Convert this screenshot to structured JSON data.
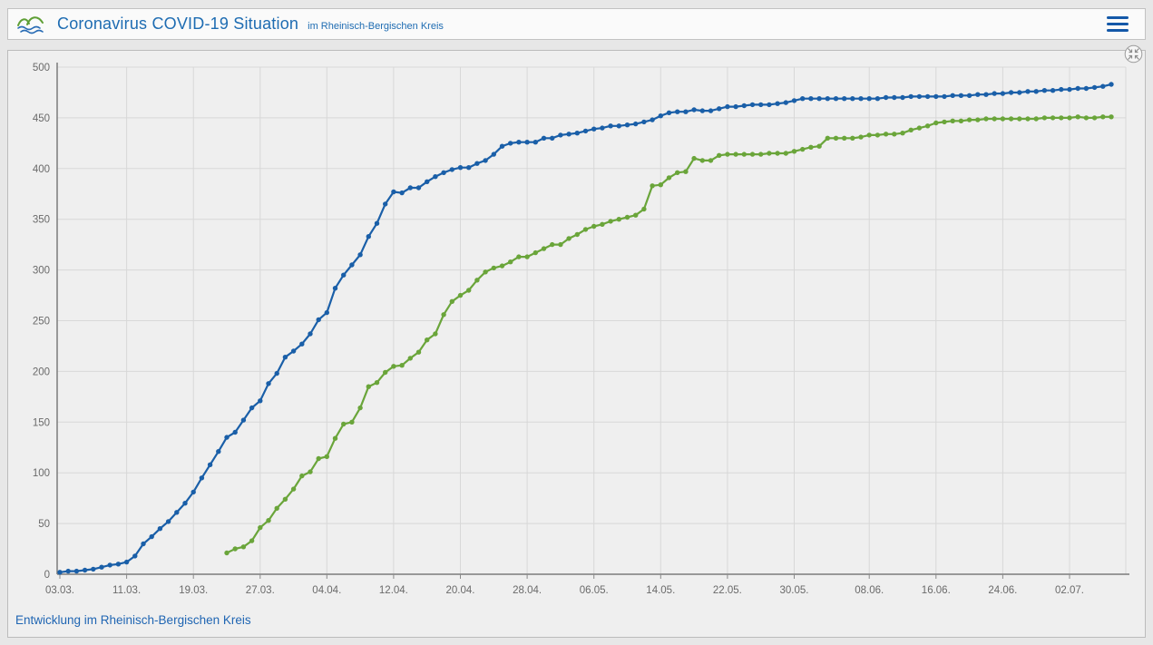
{
  "header": {
    "title": "Coronavirus COVID-19 Situation",
    "subtitle": "im Rheinisch-Bergischen Kreis",
    "logo_icon": "hills-waves-logo",
    "menu_icon": "hamburger-menu"
  },
  "panel": {
    "caption": "Entwicklung im Rheinisch-Bergischen Kreis",
    "collapse_icon": "collapse-arrows"
  },
  "colors": {
    "accent_blue": "#1e6cb2",
    "series_blue": "#1a5fa8",
    "series_green": "#6aa53a",
    "grid": "#d8d8d8",
    "axis": "#7c7c7c",
    "tick_label": "#6a6a6a",
    "page_bg": "#e7e7e7",
    "card_bg": "#efefef",
    "card_border": "#bcbcbc"
  },
  "chart_data": {
    "type": "line",
    "title": "",
    "xlabel": "",
    "ylabel": "",
    "ylim": [
      0,
      500
    ],
    "y_ticks": [
      0,
      50,
      100,
      150,
      200,
      250,
      300,
      350,
      400,
      450,
      500
    ],
    "grid": true,
    "legend": "none",
    "x_tick_labels": [
      "03.03.",
      "11.03.",
      "19.03.",
      "27.03.",
      "04.04.",
      "12.04.",
      "20.04.",
      "28.04.",
      "06.05.",
      "14.05.",
      "22.05.",
      "30.05.",
      "08.06.",
      "16.06.",
      "24.06.",
      "02.07."
    ],
    "x": [
      "03.03.",
      "04.03.",
      "05.03.",
      "06.03.",
      "07.03.",
      "08.03.",
      "09.03.",
      "10.03.",
      "11.03.",
      "12.03.",
      "13.03.",
      "14.03.",
      "15.03.",
      "16.03.",
      "17.03.",
      "18.03.",
      "19.03.",
      "20.03.",
      "21.03.",
      "22.03.",
      "23.03.",
      "24.03.",
      "25.03.",
      "26.03.",
      "27.03.",
      "28.03.",
      "29.03.",
      "30.03.",
      "31.03.",
      "01.04.",
      "02.04.",
      "03.04.",
      "04.04.",
      "05.04.",
      "06.04.",
      "07.04.",
      "08.04.",
      "09.04.",
      "10.04.",
      "11.04.",
      "12.04.",
      "13.04.",
      "14.04.",
      "15.04.",
      "16.04.",
      "17.04.",
      "18.04.",
      "19.04.",
      "20.04.",
      "21.04.",
      "22.04.",
      "23.04.",
      "24.04.",
      "25.04.",
      "26.04.",
      "27.04.",
      "28.04.",
      "29.04.",
      "30.04.",
      "01.05.",
      "02.05.",
      "03.05.",
      "04.05.",
      "05.05.",
      "06.05.",
      "07.05.",
      "08.05.",
      "09.05.",
      "10.05.",
      "11.05.",
      "12.05.",
      "13.05.",
      "14.05.",
      "15.05.",
      "16.05.",
      "17.05.",
      "18.05.",
      "19.05.",
      "20.05.",
      "21.05.",
      "22.05.",
      "23.05.",
      "24.05.",
      "25.05.",
      "26.05.",
      "27.05.",
      "28.05.",
      "29.05.",
      "30.05.",
      "31.05.",
      "01.06.",
      "02.06.",
      "03.06.",
      "04.06.",
      "05.06.",
      "06.06.",
      "07.06.",
      "08.06.",
      "09.06.",
      "10.06.",
      "11.06.",
      "12.06.",
      "13.06.",
      "14.06.",
      "15.06.",
      "16.06.",
      "17.06.",
      "18.06.",
      "19.06.",
      "20.06.",
      "21.06.",
      "22.06.",
      "23.06.",
      "24.06.",
      "25.06.",
      "26.06.",
      "27.06.",
      "28.06.",
      "29.06.",
      "30.06.",
      "01.07.",
      "02.07.",
      "03.07.",
      "04.07.",
      "05.07.",
      "06.07.",
      "07.07."
    ],
    "series": [
      {
        "name": "blue",
        "color": "#1a5fa8",
        "values": [
          2,
          3,
          3,
          4,
          5,
          7,
          9,
          10,
          12,
          18,
          30,
          37,
          45,
          52,
          61,
          70,
          81,
          95,
          108,
          121,
          135,
          140,
          152,
          164,
          171,
          188,
          198,
          214,
          220,
          227,
          237,
          251,
          258,
          282,
          295,
          305,
          315,
          333,
          346,
          365,
          377,
          376,
          381,
          381,
          387,
          392,
          396,
          399,
          401,
          401,
          405,
          408,
          414,
          422,
          425,
          426,
          426,
          426,
          430,
          430,
          433,
          434,
          435,
          437,
          439,
          440,
          442,
          442,
          443,
          444,
          446,
          448,
          452,
          455,
          456,
          456,
          458,
          457,
          457,
          459,
          461,
          461,
          462,
          463,
          463,
          463,
          464,
          465,
          467,
          469,
          469,
          469,
          469,
          469,
          469,
          469,
          469,
          469,
          469,
          470,
          470,
          470,
          471,
          471,
          471,
          471,
          471,
          472,
          472,
          472,
          473,
          473,
          474,
          474,
          475,
          475,
          476,
          476,
          477,
          477,
          478,
          478,
          479,
          479,
          480,
          481,
          483
        ]
      },
      {
        "name": "green",
        "color": "#6aa53a",
        "values": [
          null,
          null,
          null,
          null,
          null,
          null,
          null,
          null,
          null,
          null,
          null,
          null,
          null,
          null,
          null,
          null,
          null,
          null,
          null,
          null,
          21,
          25,
          27,
          33,
          46,
          53,
          65,
          74,
          84,
          97,
          101,
          114,
          116,
          134,
          148,
          150,
          164,
          185,
          189,
          199,
          205,
          206,
          213,
          219,
          231,
          237,
          256,
          269,
          275,
          280,
          290,
          298,
          302,
          304,
          308,
          313,
          313,
          317,
          321,
          325,
          325,
          331,
          335,
          340,
          343,
          345,
          348,
          350,
          352,
          354,
          360,
          383,
          384,
          391,
          396,
          397,
          410,
          408,
          408,
          413,
          414,
          414,
          414,
          414,
          414,
          415,
          415,
          415,
          417,
          419,
          421,
          422,
          430,
          430,
          430,
          430,
          431,
          433,
          433,
          434,
          434,
          435,
          438,
          440,
          442,
          445,
          446,
          447,
          447,
          448,
          448,
          449,
          449,
          449,
          449,
          449,
          449,
          449,
          450,
          450,
          450,
          450,
          451,
          450,
          450,
          451,
          451
        ]
      }
    ]
  }
}
